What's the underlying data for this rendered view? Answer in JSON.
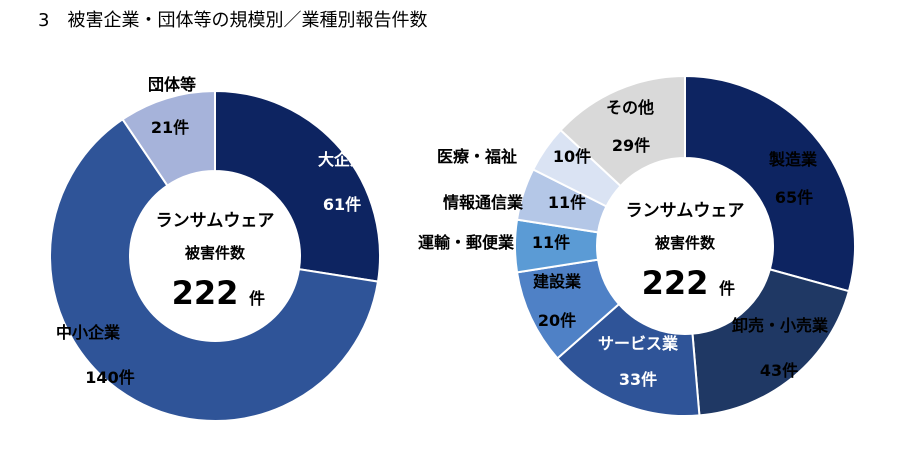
{
  "page": {
    "title": "3　被害企業・団体等の規模別／業種別報告件数"
  },
  "chart_data": [
    {
      "type": "donut",
      "center": {
        "line1": "ランサムウェア",
        "line2": "被害件数",
        "value": "222",
        "unit": "件"
      },
      "slices": [
        {
          "name": "大企業",
          "value": 61,
          "count_label": "61件",
          "color": "#0d2461",
          "label_color": "#ffffff"
        },
        {
          "name": "中小企業",
          "value": 140,
          "count_label": "140件",
          "color": "#2f5498",
          "label_color": "#000000"
        },
        {
          "name": "団体等",
          "value": 21,
          "count_label": "21件",
          "color": "#a6b3da",
          "label_color": "#000000"
        }
      ]
    },
    {
      "type": "donut",
      "center": {
        "line1": "ランサムウェア",
        "line2": "被害件数",
        "value": "222",
        "unit": "件"
      },
      "slices": [
        {
          "name": "製造業",
          "value": 65,
          "count_label": "65件",
          "color": "#0d2461",
          "label_color": "#000000"
        },
        {
          "name": "卸売・小売業",
          "value": 43,
          "count_label": "43件",
          "color": "#1f3864",
          "label_color": "#000000"
        },
        {
          "name": "サービス業",
          "value": 33,
          "count_label": "33件",
          "color": "#2f5498",
          "label_color": "#ffffff"
        },
        {
          "name": "建設業",
          "value": 20,
          "count_label": "20件",
          "color": "#4f81c6",
          "label_color": "#000000"
        },
        {
          "name": "運輸・郵便業",
          "value": 11,
          "count_label": "11件",
          "color": "#5b9bd5",
          "label_color": "#000000"
        },
        {
          "name": "情報通信業",
          "value": 11,
          "count_label": "11件",
          "color": "#b4c7e7",
          "label_color": "#000000"
        },
        {
          "name": "医療・福祉",
          "value": 10,
          "count_label": "10件",
          "color": "#dae3f3",
          "label_color": "#000000"
        },
        {
          "name": "その他",
          "value": 29,
          "count_label": "29件",
          "color": "#d9d9d9",
          "label_color": "#000000"
        }
      ]
    }
  ]
}
